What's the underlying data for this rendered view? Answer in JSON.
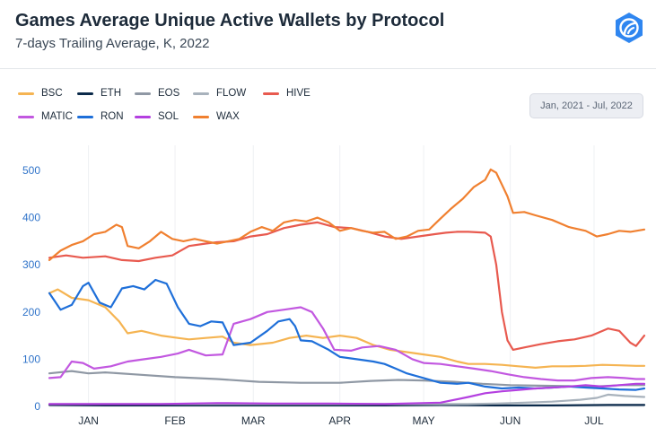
{
  "title": "Games Average Unique Active Wallets by Protocol",
  "subtitle": "7-days Trailing Average, K, 2022",
  "date_range": "Jan, 2021 - Jul, 2022",
  "logo_icon": "footprint-analytics-logo-icon",
  "chart_data": {
    "type": "line",
    "title": "Games Average Unique Active Wallets by Protocol",
    "subtitle": "7-days Trailing Average, K, 2022",
    "xlabel": "",
    "ylabel": "",
    "ylim": [
      0,
      500
    ],
    "y_ticks": [
      "0",
      "100",
      "200",
      "300",
      "400",
      "500"
    ],
    "x_ticks": [
      "JAN",
      "FEB",
      "MAR",
      "APR",
      "MAY",
      "JUN",
      "JUL"
    ],
    "x_tick_days": [
      14,
      45,
      73,
      104,
      134,
      165,
      195
    ],
    "x_domain_days": [
      0,
      213
    ],
    "grid": true,
    "legend_position": "top-left",
    "series": [
      {
        "name": "BSC",
        "color": "#f5b452",
        "points": [
          [
            0,
            240
          ],
          [
            3,
            248
          ],
          [
            8,
            230
          ],
          [
            14,
            225
          ],
          [
            20,
            210
          ],
          [
            25,
            180
          ],
          [
            28,
            155
          ],
          [
            33,
            160
          ],
          [
            40,
            150
          ],
          [
            46,
            145
          ],
          [
            50,
            142
          ],
          [
            56,
            145
          ],
          [
            62,
            148
          ],
          [
            66,
            135
          ],
          [
            72,
            130
          ],
          [
            80,
            135
          ],
          [
            86,
            145
          ],
          [
            92,
            150
          ],
          [
            98,
            145
          ],
          [
            104,
            150
          ],
          [
            110,
            145
          ],
          [
            116,
            130
          ],
          [
            122,
            120
          ],
          [
            128,
            115
          ],
          [
            134,
            110
          ],
          [
            140,
            105
          ],
          [
            146,
            95
          ],
          [
            150,
            90
          ],
          [
            156,
            90
          ],
          [
            162,
            88
          ],
          [
            168,
            85
          ],
          [
            174,
            82
          ],
          [
            180,
            85
          ],
          [
            186,
            85
          ],
          [
            192,
            86
          ],
          [
            198,
            88
          ],
          [
            204,
            87
          ],
          [
            210,
            86
          ],
          [
            213,
            86
          ]
        ]
      },
      {
        "name": "ETH",
        "color": "#0b2a4a",
        "points": [
          [
            0,
            3
          ],
          [
            20,
            2
          ],
          [
            40,
            2
          ],
          [
            60,
            2
          ],
          [
            80,
            2
          ],
          [
            100,
            2
          ],
          [
            120,
            2
          ],
          [
            140,
            3
          ],
          [
            160,
            2
          ],
          [
            180,
            2
          ],
          [
            200,
            3
          ],
          [
            213,
            3
          ]
        ]
      },
      {
        "name": "EOS",
        "color": "#8f98a4",
        "points": [
          [
            0,
            70
          ],
          [
            8,
            75
          ],
          [
            14,
            70
          ],
          [
            20,
            72
          ],
          [
            30,
            68
          ],
          [
            45,
            62
          ],
          [
            60,
            58
          ],
          [
            75,
            52
          ],
          [
            90,
            50
          ],
          [
            104,
            50
          ],
          [
            115,
            54
          ],
          [
            125,
            56
          ],
          [
            134,
            55
          ],
          [
            145,
            52
          ],
          [
            155,
            48
          ],
          [
            165,
            45
          ],
          [
            175,
            44
          ],
          [
            185,
            43
          ],
          [
            195,
            42
          ],
          [
            205,
            45
          ],
          [
            213,
            45
          ]
        ]
      },
      {
        "name": "FLOW",
        "color": "#a8b2bc",
        "points": [
          [
            0,
            5
          ],
          [
            40,
            5
          ],
          [
            80,
            5
          ],
          [
            120,
            5
          ],
          [
            150,
            5
          ],
          [
            160,
            6
          ],
          [
            170,
            8
          ],
          [
            180,
            10
          ],
          [
            190,
            14
          ],
          [
            196,
            18
          ],
          [
            200,
            25
          ],
          [
            206,
            22
          ],
          [
            213,
            20
          ]
        ]
      },
      {
        "name": "HIVE",
        "color": "#e85a4f",
        "points": [
          [
            0,
            315
          ],
          [
            6,
            320
          ],
          [
            12,
            315
          ],
          [
            20,
            318
          ],
          [
            26,
            310
          ],
          [
            32,
            308
          ],
          [
            38,
            315
          ],
          [
            44,
            320
          ],
          [
            50,
            340
          ],
          [
            56,
            345
          ],
          [
            60,
            348
          ],
          [
            66,
            350
          ],
          [
            72,
            360
          ],
          [
            78,
            365
          ],
          [
            84,
            378
          ],
          [
            90,
            385
          ],
          [
            96,
            390
          ],
          [
            102,
            380
          ],
          [
            108,
            378
          ],
          [
            114,
            370
          ],
          [
            120,
            360
          ],
          [
            126,
            355
          ],
          [
            132,
            360
          ],
          [
            138,
            365
          ],
          [
            142,
            368
          ],
          [
            146,
            370
          ],
          [
            150,
            370
          ],
          [
            156,
            368
          ],
          [
            158,
            360
          ],
          [
            160,
            300
          ],
          [
            162,
            200
          ],
          [
            164,
            140
          ],
          [
            166,
            120
          ],
          [
            170,
            125
          ],
          [
            176,
            132
          ],
          [
            182,
            138
          ],
          [
            188,
            142
          ],
          [
            194,
            150
          ],
          [
            200,
            165
          ],
          [
            204,
            160
          ],
          [
            208,
            135
          ],
          [
            210,
            128
          ],
          [
            213,
            150
          ]
        ]
      },
      {
        "name": "MATIC",
        "color": "#c258e0",
        "points": [
          [
            0,
            60
          ],
          [
            4,
            62
          ],
          [
            8,
            95
          ],
          [
            12,
            92
          ],
          [
            16,
            80
          ],
          [
            22,
            85
          ],
          [
            28,
            95
          ],
          [
            34,
            100
          ],
          [
            40,
            105
          ],
          [
            46,
            112
          ],
          [
            50,
            120
          ],
          [
            56,
            108
          ],
          [
            62,
            110
          ],
          [
            66,
            175
          ],
          [
            72,
            185
          ],
          [
            78,
            200
          ],
          [
            84,
            205
          ],
          [
            90,
            210
          ],
          [
            94,
            200
          ],
          [
            98,
            165
          ],
          [
            102,
            120
          ],
          [
            108,
            118
          ],
          [
            112,
            125
          ],
          [
            118,
            128
          ],
          [
            124,
            120
          ],
          [
            130,
            100
          ],
          [
            134,
            92
          ],
          [
            140,
            90
          ],
          [
            146,
            85
          ],
          [
            152,
            80
          ],
          [
            158,
            75
          ],
          [
            164,
            68
          ],
          [
            170,
            62
          ],
          [
            176,
            58
          ],
          [
            182,
            55
          ],
          [
            188,
            55
          ],
          [
            194,
            60
          ],
          [
            200,
            62
          ],
          [
            206,
            60
          ],
          [
            210,
            58
          ],
          [
            213,
            58
          ]
        ]
      },
      {
        "name": "RON",
        "color": "#1e6fd9",
        "points": [
          [
            0,
            240
          ],
          [
            4,
            205
          ],
          [
            8,
            215
          ],
          [
            12,
            255
          ],
          [
            14,
            262
          ],
          [
            18,
            220
          ],
          [
            22,
            210
          ],
          [
            26,
            250
          ],
          [
            30,
            255
          ],
          [
            34,
            248
          ],
          [
            38,
            268
          ],
          [
            42,
            260
          ],
          [
            46,
            210
          ],
          [
            50,
            175
          ],
          [
            54,
            170
          ],
          [
            58,
            180
          ],
          [
            62,
            178
          ],
          [
            66,
            130
          ],
          [
            72,
            135
          ],
          [
            78,
            160
          ],
          [
            82,
            180
          ],
          [
            86,
            185
          ],
          [
            88,
            170
          ],
          [
            90,
            140
          ],
          [
            94,
            138
          ],
          [
            100,
            120
          ],
          [
            104,
            105
          ],
          [
            110,
            100
          ],
          [
            116,
            95
          ],
          [
            120,
            90
          ],
          [
            124,
            80
          ],
          [
            128,
            70
          ],
          [
            134,
            60
          ],
          [
            140,
            50
          ],
          [
            146,
            48
          ],
          [
            150,
            50
          ],
          [
            156,
            42
          ],
          [
            162,
            38
          ],
          [
            168,
            40
          ],
          [
            174,
            38
          ],
          [
            180,
            40
          ],
          [
            186,
            42
          ],
          [
            192,
            40
          ],
          [
            198,
            38
          ],
          [
            204,
            36
          ],
          [
            210,
            35
          ],
          [
            213,
            38
          ]
        ]
      },
      {
        "name": "SOL",
        "color": "#b440e0",
        "points": [
          [
            0,
            5
          ],
          [
            40,
            5
          ],
          [
            60,
            7
          ],
          [
            80,
            6
          ],
          [
            100,
            6
          ],
          [
            120,
            5
          ],
          [
            140,
            8
          ],
          [
            150,
            20
          ],
          [
            156,
            28
          ],
          [
            162,
            32
          ],
          [
            168,
            35
          ],
          [
            174,
            38
          ],
          [
            180,
            40
          ],
          [
            186,
            42
          ],
          [
            192,
            45
          ],
          [
            198,
            42
          ],
          [
            204,
            45
          ],
          [
            210,
            48
          ],
          [
            213,
            48
          ]
        ]
      },
      {
        "name": "WAX",
        "color": "#f08030",
        "points": [
          [
            0,
            310
          ],
          [
            4,
            330
          ],
          [
            8,
            342
          ],
          [
            12,
            350
          ],
          [
            16,
            365
          ],
          [
            20,
            370
          ],
          [
            24,
            385
          ],
          [
            26,
            380
          ],
          [
            28,
            340
          ],
          [
            32,
            335
          ],
          [
            36,
            350
          ],
          [
            40,
            370
          ],
          [
            44,
            355
          ],
          [
            48,
            350
          ],
          [
            52,
            355
          ],
          [
            56,
            350
          ],
          [
            60,
            345
          ],
          [
            64,
            350
          ],
          [
            68,
            355
          ],
          [
            72,
            370
          ],
          [
            76,
            380
          ],
          [
            80,
            372
          ],
          [
            84,
            390
          ],
          [
            88,
            395
          ],
          [
            92,
            392
          ],
          [
            96,
            400
          ],
          [
            100,
            390
          ],
          [
            104,
            372
          ],
          [
            108,
            378
          ],
          [
            112,
            372
          ],
          [
            116,
            368
          ],
          [
            120,
            370
          ],
          [
            124,
            355
          ],
          [
            128,
            360
          ],
          [
            132,
            372
          ],
          [
            136,
            375
          ],
          [
            140,
            398
          ],
          [
            144,
            420
          ],
          [
            148,
            440
          ],
          [
            152,
            465
          ],
          [
            156,
            480
          ],
          [
            158,
            502
          ],
          [
            160,
            495
          ],
          [
            162,
            470
          ],
          [
            164,
            445
          ],
          [
            166,
            410
          ],
          [
            170,
            412
          ],
          [
            174,
            405
          ],
          [
            180,
            395
          ],
          [
            186,
            380
          ],
          [
            192,
            372
          ],
          [
            196,
            360
          ],
          [
            200,
            365
          ],
          [
            204,
            372
          ],
          [
            208,
            370
          ],
          [
            213,
            375
          ]
        ]
      }
    ]
  }
}
